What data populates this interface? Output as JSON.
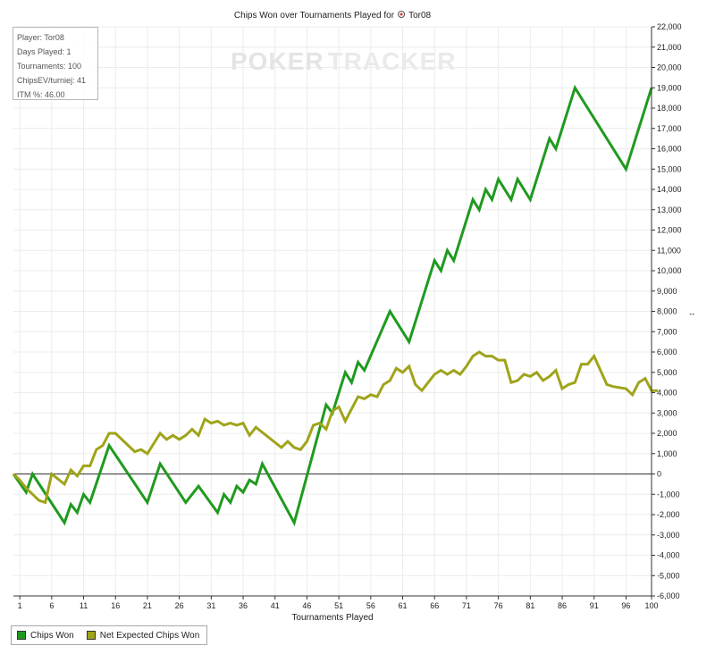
{
  "chart_data": {
    "type": "line",
    "title": "Chips Won over Tournaments Played for",
    "player_name": "Tor08",
    "watermark_left": "POKER",
    "watermark_right": "TRACKER",
    "xlabel": "Tournaments Played",
    "ylabel": "",
    "x_ticks": [
      1,
      6,
      11,
      16,
      21,
      26,
      31,
      36,
      41,
      46,
      51,
      56,
      61,
      66,
      71,
      76,
      81,
      86,
      91,
      96,
      100
    ],
    "xlim": [
      0,
      100
    ],
    "y_ticks": [
      -6000,
      -5000,
      -4000,
      -3000,
      -2000,
      -1000,
      0,
      1000,
      2000,
      3000,
      4000,
      5000,
      6000,
      7000,
      8000,
      9000,
      10000,
      11000,
      12000,
      13000,
      14000,
      15000,
      16000,
      17000,
      18000,
      19000,
      20000,
      21000,
      22000
    ],
    "ylim": [
      -6000,
      22000
    ],
    "grid": true,
    "legend": "bottom-left",
    "series": [
      {
        "name": "Chips Won",
        "color": "#1f9a1f",
        "points": [
          [
            0,
            0
          ],
          [
            2,
            -900
          ],
          [
            3,
            0
          ],
          [
            8,
            -2400
          ],
          [
            9,
            -1500
          ],
          [
            10,
            -1900
          ],
          [
            11,
            -1000
          ],
          [
            12,
            -1400
          ],
          [
            15,
            1400
          ],
          [
            21,
            -1400
          ],
          [
            23,
            500
          ],
          [
            27,
            -1400
          ],
          [
            29,
            -600
          ],
          [
            32,
            -1900
          ],
          [
            33,
            -1000
          ],
          [
            34,
            -1400
          ],
          [
            35,
            -600
          ],
          [
            36,
            -900
          ],
          [
            37,
            -300
          ],
          [
            38,
            -500
          ],
          [
            39,
            500
          ],
          [
            44,
            -2400
          ],
          [
            49,
            3400
          ],
          [
            50,
            3000
          ],
          [
            52,
            5000
          ],
          [
            53,
            4500
          ],
          [
            54,
            5500
          ],
          [
            55,
            5100
          ],
          [
            59,
            8000
          ],
          [
            62,
            6500
          ],
          [
            66,
            10500
          ],
          [
            67,
            10000
          ],
          [
            68,
            11000
          ],
          [
            69,
            10500
          ],
          [
            72,
            13500
          ],
          [
            73,
            13000
          ],
          [
            74,
            14000
          ],
          [
            75,
            13500
          ],
          [
            76,
            14500
          ],
          [
            78,
            13500
          ],
          [
            79,
            14500
          ],
          [
            81,
            13500
          ],
          [
            84,
            16500
          ],
          [
            85,
            16000
          ],
          [
            88,
            19000
          ],
          [
            96,
            15000
          ],
          [
            100,
            19000
          ]
        ]
      },
      {
        "name": "Net Expected Chips Won",
        "color": "#9fa41a",
        "points": [
          [
            0,
            0
          ],
          [
            1,
            -300
          ],
          [
            2,
            -700
          ],
          [
            4,
            -1300
          ],
          [
            5,
            -1400
          ],
          [
            6,
            0
          ],
          [
            8,
            -500
          ],
          [
            9,
            200
          ],
          [
            10,
            -100
          ],
          [
            11,
            400
          ],
          [
            12,
            400
          ],
          [
            13,
            1200
          ],
          [
            14,
            1400
          ],
          [
            15,
            2000
          ],
          [
            16,
            2000
          ],
          [
            19,
            1100
          ],
          [
            20,
            1200
          ],
          [
            21,
            1000
          ],
          [
            23,
            2000
          ],
          [
            24,
            1700
          ],
          [
            25,
            1900
          ],
          [
            26,
            1700
          ],
          [
            27,
            1900
          ],
          [
            28,
            2200
          ],
          [
            29,
            1900
          ],
          [
            30,
            2700
          ],
          [
            31,
            2500
          ],
          [
            32,
            2600
          ],
          [
            33,
            2400
          ],
          [
            34,
            2500
          ],
          [
            35,
            2400
          ],
          [
            36,
            2500
          ],
          [
            37,
            1900
          ],
          [
            38,
            2300
          ],
          [
            42,
            1300
          ],
          [
            43,
            1600
          ],
          [
            44,
            1300
          ],
          [
            45,
            1200
          ],
          [
            46,
            1600
          ],
          [
            47,
            2400
          ],
          [
            48,
            2500
          ],
          [
            49,
            2200
          ],
          [
            50,
            3100
          ],
          [
            51,
            3300
          ],
          [
            52,
            2600
          ],
          [
            53,
            3200
          ],
          [
            54,
            3800
          ],
          [
            55,
            3700
          ],
          [
            56,
            3900
          ],
          [
            57,
            3800
          ],
          [
            58,
            4400
          ],
          [
            59,
            4600
          ],
          [
            60,
            5200
          ],
          [
            61,
            5000
          ],
          [
            62,
            5300
          ],
          [
            63,
            4400
          ],
          [
            64,
            4100
          ],
          [
            65,
            4500
          ],
          [
            66,
            4900
          ],
          [
            67,
            5100
          ],
          [
            68,
            4900
          ],
          [
            69,
            5100
          ],
          [
            70,
            4900
          ],
          [
            71,
            5300
          ],
          [
            72,
            5800
          ],
          [
            73,
            6000
          ],
          [
            74,
            5800
          ],
          [
            75,
            5800
          ],
          [
            76,
            5600
          ],
          [
            77,
            5600
          ],
          [
            78,
            4500
          ],
          [
            79,
            4600
          ],
          [
            80,
            4900
          ],
          [
            81,
            4800
          ],
          [
            82,
            5000
          ],
          [
            83,
            4600
          ],
          [
            84,
            4800
          ],
          [
            85,
            5100
          ],
          [
            86,
            4200
          ],
          [
            87,
            4400
          ],
          [
            88,
            4500
          ],
          [
            89,
            5400
          ],
          [
            90,
            5400
          ],
          [
            91,
            5800
          ],
          [
            93,
            4400
          ],
          [
            94,
            4300
          ],
          [
            96,
            4200
          ],
          [
            97,
            3900
          ],
          [
            98,
            4500
          ],
          [
            99,
            4700
          ],
          [
            100,
            4100
          ],
          [
            101,
            4100
          ]
        ]
      }
    ]
  },
  "info_box": {
    "player": "Player: Tor08",
    "days": "Days Played: 1",
    "tournaments": "Tournaments: 100",
    "chips_ev": "ChipsEV/turniej: 41",
    "itm": "ITM %: 46.00"
  },
  "legend_items": [
    {
      "label": "Chips Won",
      "color": "#1f9a1f"
    },
    {
      "label": "Net Expected Chips Won",
      "color": "#9fa41a"
    }
  ],
  "resize_glyph": "↔"
}
